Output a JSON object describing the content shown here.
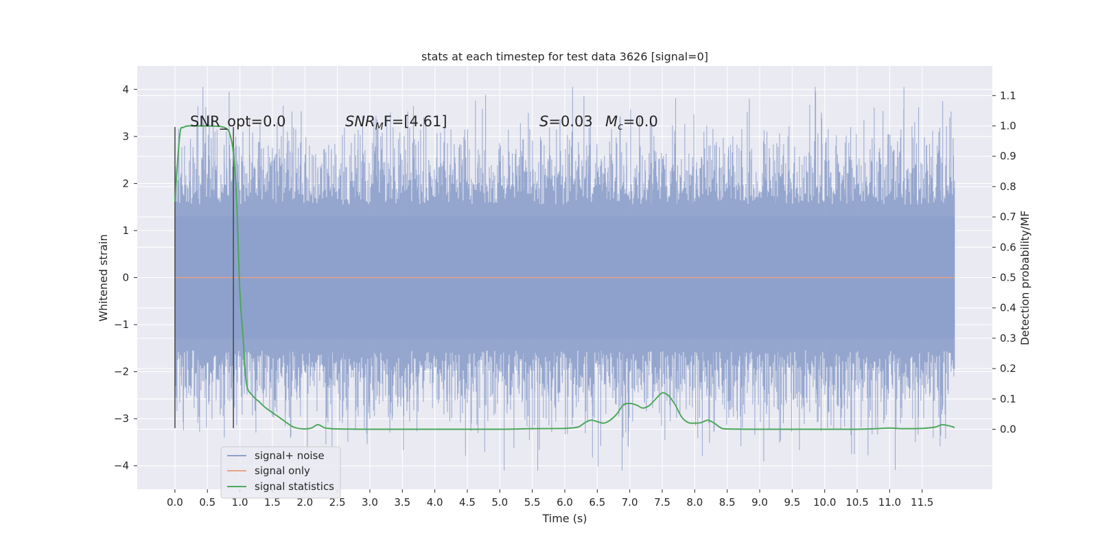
{
  "chart_data": {
    "type": "line",
    "title": "stats at each timestep for test data 3626 [signal=0]",
    "xlabel": "Time (s)",
    "ylabel": "Whitened strain",
    "ylabel_right": "Detection probability/MF",
    "xlim": [
      -0.58,
      12.58
    ],
    "ylim": [
      -4.5,
      4.5
    ],
    "ylim_right": [
      -0.198,
      1.198
    ],
    "x_ticks": [
      "0.0",
      "0.5",
      "1.0",
      "1.5",
      "2.0",
      "2.5",
      "3.0",
      "3.5",
      "4.0",
      "4.5",
      "5.0",
      "5.5",
      "6.0",
      "6.5",
      "7.0",
      "7.5",
      "8.0",
      "8.5",
      "9.0",
      "9.5",
      "10.0",
      "10.5",
      "11.0",
      "11.5"
    ],
    "y_ticks_left": [
      "4",
      "3",
      "2",
      "1",
      "0",
      "−1",
      "−2",
      "−3",
      "−4"
    ],
    "y_ticks_right": [
      "1.1",
      "1.0",
      "0.9",
      "0.8",
      "0.7",
      "0.6",
      "0.5",
      "0.4",
      "0.3",
      "0.2",
      "0.1",
      "0.0"
    ],
    "grid": true,
    "legend_position": "lower-left",
    "annotations": {
      "snr_opt": "SNR_opt=0.0",
      "snr_mf_symbol": "SNR",
      "snr_mf_sub": "M",
      "snr_mf_rest": "F=[4.61]",
      "s_symbol": "S",
      "s_rest": "=0.03",
      "mc_symbol": "M",
      "mc_sub": "c",
      "mc_rest": "=0.0"
    },
    "vertical_markers_x": [
      0.0,
      0.9
    ],
    "series": [
      {
        "name": "signal+ noise",
        "color": "#8da0cb",
        "x_range": [
          0.0,
          12.0
        ],
        "core_band": [
          -1.3,
          1.3
        ],
        "peak_max": 4.05,
        "peak_min": -4.1
      },
      {
        "name": "signal only",
        "color": "#e8a287",
        "x": [
          0.0,
          12.0
        ],
        "y": [
          0.0,
          0.0
        ]
      },
      {
        "name": "signal statistics",
        "color": "#4ca85a",
        "axis": "right",
        "x": [
          0.0,
          0.03,
          0.08,
          0.13,
          0.2,
          0.3,
          0.5,
          0.7,
          0.8,
          0.85,
          0.9,
          0.95,
          1.0,
          1.05,
          1.1,
          1.2,
          1.3,
          1.4,
          1.6,
          1.8,
          1.9,
          2.0,
          2.1,
          2.2,
          2.3,
          2.4,
          2.5,
          3.0,
          4.0,
          5.0,
          5.5,
          6.0,
          6.2,
          6.3,
          6.4,
          6.5,
          6.6,
          6.7,
          6.8,
          6.9,
          7.0,
          7.1,
          7.2,
          7.3,
          7.4,
          7.5,
          7.6,
          7.7,
          7.8,
          7.9,
          8.0,
          8.1,
          8.2,
          8.3,
          8.4,
          8.5,
          9.0,
          10.0,
          10.5,
          10.8,
          11.0,
          11.2,
          11.5,
          11.7,
          11.8,
          11.9,
          12.0
        ],
        "y": [
          0.75,
          0.85,
          0.98,
          0.995,
          1.0,
          1.0,
          1.0,
          0.998,
          0.99,
          0.97,
          0.91,
          0.75,
          0.45,
          0.3,
          0.15,
          0.11,
          0.09,
          0.07,
          0.04,
          0.01,
          0.003,
          0.001,
          0.004,
          0.015,
          0.005,
          0.002,
          0.001,
          0.0,
          0.0,
          0.0,
          0.002,
          0.003,
          0.007,
          0.02,
          0.03,
          0.025,
          0.02,
          0.03,
          0.05,
          0.08,
          0.085,
          0.08,
          0.07,
          0.078,
          0.1,
          0.12,
          0.11,
          0.08,
          0.04,
          0.022,
          0.02,
          0.022,
          0.03,
          0.02,
          0.005,
          0.001,
          0.0,
          0.0,
          0.0,
          0.002,
          0.004,
          0.002,
          0.003,
          0.007,
          0.015,
          0.012,
          0.006
        ]
      }
    ]
  }
}
